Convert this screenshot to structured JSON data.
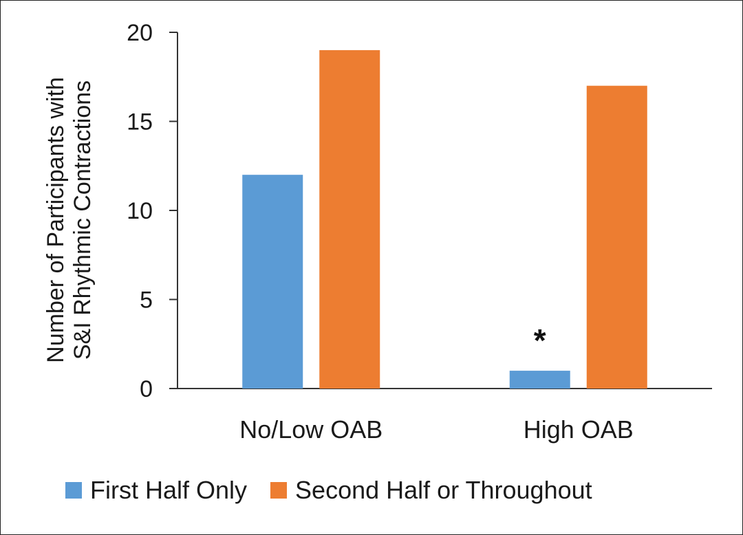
{
  "chart_data": {
    "type": "bar",
    "categories": [
      "No/Low OAB",
      "High OAB"
    ],
    "series": [
      {
        "name": "First Half Only",
        "color": "#5b9bd5",
        "values": [
          12,
          1
        ]
      },
      {
        "name": "Second Half or Throughout",
        "color": "#ed7d31",
        "values": [
          19,
          17
        ]
      }
    ],
    "ylabel_lines": [
      "Number of Participants with",
      "S&I Rhythmic Contractions"
    ],
    "xlabel": "",
    "ylim": [
      0,
      20
    ],
    "yticks": [
      0,
      5,
      10,
      15,
      20
    ],
    "grid": false,
    "legend_position": "bottom",
    "annotations": [
      {
        "text": "*",
        "category": "High OAB",
        "series": "First Half Only"
      }
    ]
  }
}
